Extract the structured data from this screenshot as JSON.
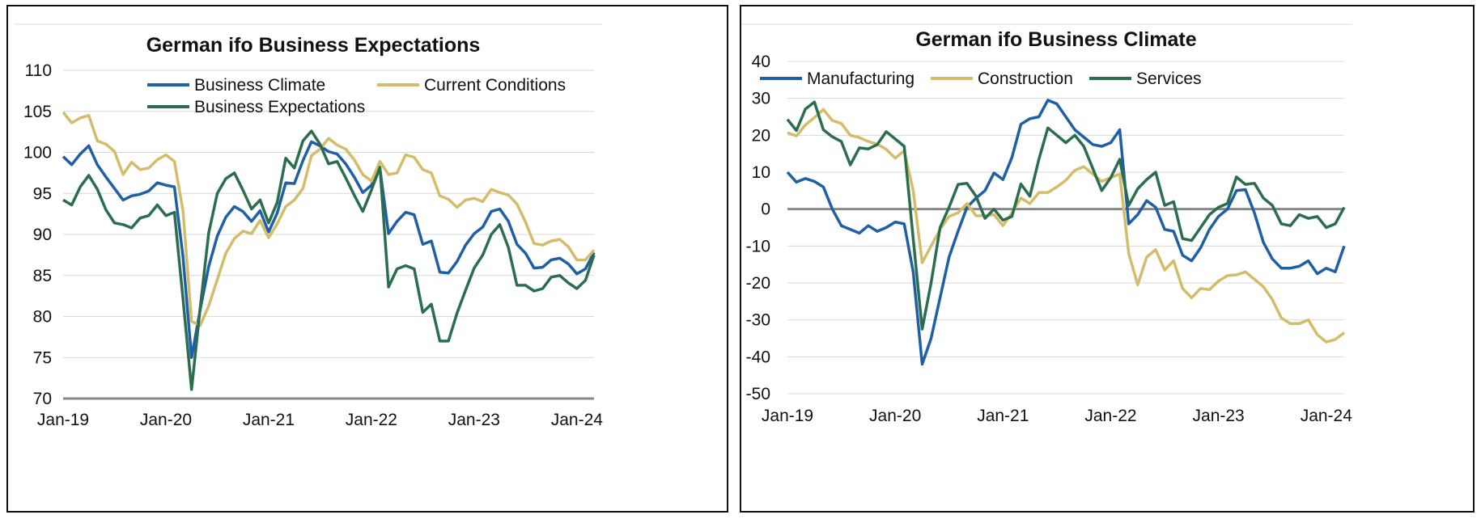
{
  "colors": {
    "blue": "#1f5fa6",
    "gold": "#d4bd6a",
    "green": "#2a6e4e",
    "axis": "#888888",
    "grid": "#d9d9d9"
  },
  "chart_data": [
    {
      "type": "line",
      "title": "German ifo Business Expectations",
      "xlabel": "",
      "ylabel": "",
      "ylim": [
        70,
        110
      ],
      "yticks": [
        "70",
        "75",
        "80",
        "85",
        "90",
        "95",
        "100",
        "105",
        "110"
      ],
      "xticks": [
        "Jan-19",
        "Jan-20",
        "Jan-21",
        "Jan-22",
        "Jan-23",
        "Jan-24"
      ],
      "x_start": "Jan-19",
      "grid": true,
      "legend_position": "top",
      "series": [
        {
          "name": "Business Climate",
          "color": "#1f5fa6",
          "values": [
            99.5,
            98.5,
            99.8,
            100.8,
            98.5,
            97.0,
            95.6,
            94.2,
            94.7,
            94.9,
            95.3,
            96.3,
            96.0,
            95.8,
            87.3,
            75.0,
            80.8,
            86.1,
            89.8,
            92.1,
            93.4,
            92.8,
            91.6,
            92.9,
            90.3,
            92.6,
            96.3,
            96.2,
            99.0,
            101.3,
            100.8,
            100.1,
            99.8,
            98.6,
            97.0,
            95.1,
            96.0,
            98.0,
            90.1,
            91.6,
            92.7,
            92.4,
            88.8,
            89.2,
            85.4,
            85.3,
            86.7,
            88.7,
            90.1,
            90.9,
            92.8,
            93.1,
            91.6,
            88.8,
            87.7,
            85.9,
            86.0,
            86.9,
            87.1,
            86.4,
            85.2,
            85.8,
            87.8
          ]
        },
        {
          "name": "Current Conditions",
          "color": "#d4bd6a",
          "values": [
            104.9,
            103.6,
            104.2,
            104.5,
            101.4,
            101.0,
            100.1,
            97.3,
            98.8,
            97.9,
            98.1,
            99.1,
            99.7,
            98.9,
            92.9,
            79.4,
            78.9,
            81.3,
            84.5,
            87.7,
            89.5,
            90.4,
            90.1,
            91.7,
            89.6,
            91.3,
            93.4,
            94.2,
            95.6,
            99.6,
            100.4,
            101.7,
            100.9,
            100.4,
            99.1,
            97.3,
            96.5,
            98.9,
            97.3,
            97.5,
            99.7,
            99.4,
            97.9,
            97.5,
            94.7,
            94.3,
            93.3,
            94.2,
            94.4,
            94.0,
            95.5,
            95.1,
            94.8,
            93.7,
            91.5,
            88.9,
            88.7,
            89.2,
            89.4,
            88.5,
            86.9,
            86.9,
            88.1
          ]
        },
        {
          "name": "Business Expectations",
          "color": "#2a6e4e",
          "values": [
            94.2,
            93.6,
            95.8,
            97.2,
            95.5,
            93.0,
            91.4,
            91.2,
            90.8,
            92.0,
            92.3,
            93.6,
            92.3,
            92.7,
            82.2,
            71.1,
            81.0,
            90.2,
            95.0,
            96.8,
            97.5,
            95.4,
            93.1,
            94.2,
            91.4,
            93.9,
            99.3,
            98.1,
            101.4,
            102.6,
            101.0,
            98.6,
            98.9,
            96.9,
            94.8,
            92.8,
            95.4,
            98.2,
            83.6,
            85.8,
            86.2,
            85.8,
            80.5,
            81.5,
            77.0,
            77.0,
            80.4,
            83.2,
            85.9,
            87.5,
            90.0,
            91.2,
            88.4,
            83.8,
            83.8,
            83.1,
            83.4,
            84.8,
            85.0,
            84.1,
            83.4,
            84.4,
            87.5
          ]
        }
      ]
    },
    {
      "type": "line",
      "title": "German ifo Business Climate",
      "xlabel": "",
      "ylabel": "",
      "ylim": [
        -50,
        40
      ],
      "yticks": [
        "-50",
        "-40",
        "-30",
        "-20",
        "-10",
        "0",
        "10",
        "20",
        "30",
        "40"
      ],
      "xticks": [
        "Jan-19",
        "Jan-20",
        "Jan-21",
        "Jan-22",
        "Jan-23",
        "Jan-24"
      ],
      "x_start": "Jan-19",
      "grid": true,
      "legend_position": "top",
      "series": [
        {
          "name": "Manufacturing",
          "color": "#1f5fa6",
          "values": [
            10.0,
            7.3,
            8.3,
            7.5,
            6.0,
            0.0,
            -4.5,
            -5.5,
            -6.5,
            -4.5,
            -6.0,
            -5.0,
            -3.5,
            -4.0,
            -17.0,
            -42.0,
            -35.0,
            -24.0,
            -13.0,
            -6.0,
            0.5,
            3.0,
            5.0,
            9.8,
            8.0,
            14.0,
            23.0,
            24.5,
            25.0,
            29.5,
            28.5,
            25.0,
            21.5,
            19.5,
            17.5,
            17.0,
            18.0,
            21.5,
            -4.0,
            -1.5,
            2.3,
            0.5,
            -5.5,
            -6.0,
            -12.5,
            -14.0,
            -10.5,
            -5.5,
            -2.0,
            0.0,
            5.0,
            5.3,
            -1.0,
            -9.0,
            -13.5,
            -16.0,
            -16.0,
            -15.5,
            -14.0,
            -17.5,
            -16.0,
            -17.0,
            -10.0
          ]
        },
        {
          "name": "Construction",
          "color": "#d4bd6a",
          "values": [
            20.7,
            19.8,
            22.8,
            24.8,
            27.0,
            24.0,
            23.2,
            20.0,
            19.4,
            18.3,
            17.6,
            16.2,
            13.8,
            15.8,
            5.0,
            -14.5,
            -10.0,
            -5.5,
            -2.0,
            -1.0,
            1.5,
            -1.8,
            -1.8,
            -1.5,
            -4.5,
            -1.0,
            3.0,
            1.5,
            4.5,
            4.5,
            6.0,
            7.8,
            10.5,
            11.5,
            9.5,
            7.5,
            8.5,
            9.5,
            -12.0,
            -20.5,
            -13.0,
            -11.0,
            -16.5,
            -14.0,
            -21.5,
            -24.0,
            -21.5,
            -21.8,
            -19.5,
            -18.0,
            -17.8,
            -17.0,
            -19.0,
            -21.0,
            -24.5,
            -29.5,
            -31.0,
            -31.0,
            -30.0,
            -34.0,
            -36.0,
            -35.3,
            -33.5
          ]
        },
        {
          "name": "Services",
          "color": "#2a6e4e",
          "values": [
            24.3,
            21.3,
            27.1,
            29.0,
            21.5,
            19.6,
            18.3,
            12.0,
            16.6,
            16.3,
            17.5,
            21.0,
            19.0,
            17.0,
            -8.0,
            -32.5,
            -20.0,
            -5.0,
            0.5,
            6.7,
            7.0,
            3.5,
            -2.5,
            0.0,
            -3.0,
            -2.0,
            6.8,
            3.5,
            13.5,
            22.0,
            20.0,
            18.0,
            20.0,
            17.0,
            11.0,
            5.0,
            8.5,
            13.5,
            1.0,
            5.5,
            8.0,
            10.0,
            1.0,
            2.0,
            -8.0,
            -8.5,
            -5.0,
            -1.5,
            0.5,
            1.5,
            8.7,
            6.7,
            7.0,
            3.0,
            1.0,
            -4.0,
            -4.5,
            -1.5,
            -2.5,
            -2.0,
            -5.0,
            -4.0,
            0.5
          ]
        }
      ]
    }
  ]
}
